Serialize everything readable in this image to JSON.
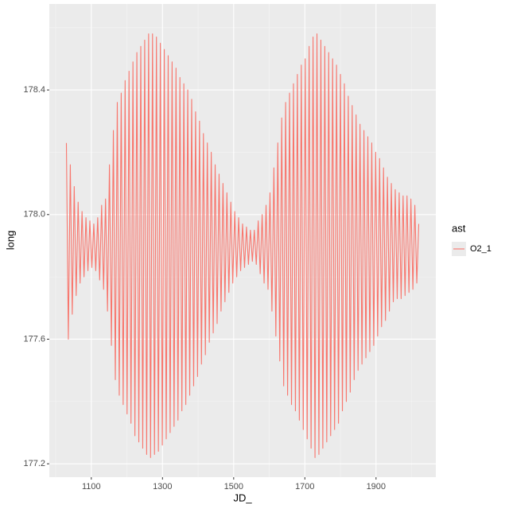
{
  "chart_data": {
    "type": "line",
    "x_label": "JD_",
    "y_label": "long",
    "legend_title": "ast",
    "xlim": [
      982,
      2068
    ],
    "ylim": [
      177.157,
      178.676
    ],
    "xticks": [
      1100,
      1300,
      1500,
      1700,
      1900
    ],
    "yticks": [
      177.2,
      177.6,
      {
        "value": 178,
        "label": "178.0"
      },
      178.4
    ],
    "grid": true,
    "legend": "right",
    "x": [
      1030,
      1035.5,
      1041,
      1046.5,
      1052,
      1057.5,
      1063,
      1068.5,
      1074,
      1079.5,
      1085,
      1090.5,
      1096,
      1101.5,
      1107,
      1112.5,
      1118,
      1123.5,
      1129,
      1134.5,
      1140,
      1145.5,
      1151,
      1156.5,
      1162,
      1167.5,
      1173,
      1178.5,
      1184,
      1189.5,
      1195,
      1200.5,
      1206,
      1211.5,
      1217,
      1222.5,
      1228,
      1233.5,
      1239,
      1244.5,
      1250,
      1255.5,
      1261,
      1266.5,
      1272,
      1277.5,
      1283,
      1288.5,
      1294,
      1299.5,
      1305,
      1310.5,
      1316,
      1321.5,
      1327,
      1332.5,
      1338,
      1343.5,
      1349,
      1354.5,
      1360,
      1365.5,
      1371,
      1376.5,
      1382,
      1387.5,
      1393,
      1398.5,
      1404,
      1409.5,
      1415,
      1420.5,
      1426,
      1431.5,
      1437,
      1442.5,
      1448,
      1453.5,
      1459,
      1464.5,
      1470,
      1475.5,
      1481,
      1486.5,
      1492,
      1497.5,
      1503,
      1508.5,
      1514,
      1519.5,
      1525,
      1530.5,
      1536,
      1541.5,
      1547,
      1552.5,
      1558,
      1563.5,
      1569,
      1574.5,
      1580,
      1585.5,
      1591,
      1596.5,
      1602,
      1607.5,
      1613,
      1618.5,
      1624,
      1629.5,
      1635,
      1640.5,
      1646,
      1651.5,
      1657,
      1662.5,
      1668,
      1673.5,
      1679,
      1684.5,
      1690,
      1695.5,
      1701,
      1706.5,
      1712,
      1717.5,
      1723,
      1728.5,
      1734,
      1739.5,
      1745,
      1750.5,
      1756,
      1761.5,
      1767,
      1772.5,
      1778,
      1783.5,
      1789,
      1794.5,
      1800,
      1805.5,
      1811,
      1816.5,
      1822,
      1827.5,
      1833,
      1838.5,
      1844,
      1849.5,
      1855,
      1860.5,
      1866,
      1871.5,
      1877,
      1882.5,
      1888,
      1893.5,
      1899,
      1904.5,
      1910,
      1915.5,
      1921,
      1926.5,
      1932,
      1937.5,
      1943,
      1948.5,
      1954,
      1959.5,
      1965,
      1970.5,
      1976,
      1981.5,
      1987,
      1992.5,
      1998,
      2003.5,
      2009,
      2014.5,
      2020
    ],
    "series": [
      {
        "name": "O2_1",
        "color": "#F8766D",
        "values": [
          178.23,
          177.6,
          178.16,
          177.68,
          178.09,
          177.74,
          178.04,
          177.78,
          178.01,
          177.8,
          177.99,
          177.82,
          177.98,
          177.83,
          177.97,
          177.82,
          177.99,
          177.79,
          178.03,
          177.76,
          178.05,
          177.69,
          178.16,
          177.58,
          178.27,
          177.47,
          178.36,
          177.42,
          178.39,
          177.39,
          178.43,
          177.36,
          178.46,
          177.33,
          178.49,
          177.29,
          178.52,
          177.27,
          178.54,
          177.25,
          178.56,
          177.23,
          178.58,
          177.22,
          178.58,
          177.23,
          178.57,
          177.24,
          178.55,
          177.26,
          178.53,
          177.28,
          178.51,
          177.3,
          178.49,
          177.32,
          178.47,
          177.34,
          178.44,
          177.37,
          178.42,
          177.39,
          178.4,
          177.42,
          178.37,
          177.45,
          178.33,
          177.48,
          178.3,
          177.52,
          178.26,
          177.55,
          178.23,
          177.59,
          178.2,
          177.62,
          178.16,
          177.65,
          178.13,
          177.69,
          178.1,
          177.72,
          178.07,
          177.75,
          178.04,
          177.78,
          178.01,
          177.8,
          177.99,
          177.82,
          177.97,
          177.83,
          177.96,
          177.84,
          177.95,
          177.85,
          177.95,
          177.84,
          177.98,
          177.81,
          178,
          177.78,
          178.03,
          177.76,
          178.07,
          177.69,
          178.15,
          177.61,
          178.23,
          177.53,
          178.31,
          177.45,
          178.36,
          177.42,
          178.39,
          177.39,
          178.42,
          177.37,
          178.45,
          177.34,
          178.48,
          177.31,
          178.5,
          177.28,
          178.54,
          177.25,
          178.57,
          177.22,
          178.58,
          177.23,
          178.56,
          177.25,
          178.54,
          177.27,
          178.52,
          177.29,
          178.5,
          177.31,
          178.48,
          177.33,
          178.45,
          177.37,
          178.42,
          177.4,
          178.38,
          177.43,
          178.35,
          177.47,
          178.32,
          177.5,
          178.29,
          177.52,
          178.27,
          177.54,
          178.25,
          177.56,
          178.23,
          177.58,
          178.2,
          177.61,
          178.18,
          177.64,
          178.15,
          177.66,
          178.12,
          177.69,
          178.1,
          177.72,
          178.08,
          177.73,
          178.07,
          177.73,
          178.06,
          177.74,
          178.06,
          177.75,
          178.05,
          177.76,
          178.03,
          177.78,
          177.97
        ]
      }
    ]
  }
}
